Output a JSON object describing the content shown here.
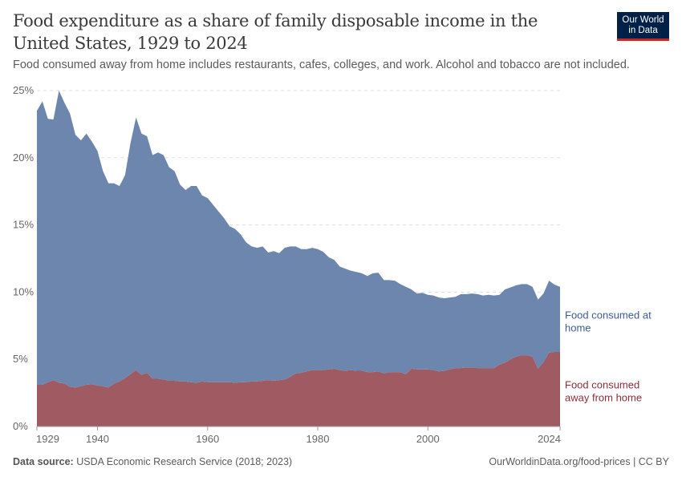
{
  "header": {
    "title": "Food expenditure as a share of family disposable income in the United States, 1929 to 2024",
    "subtitle": "Food consumed away from home includes restaurants, cafes, colleges, and work. Alcohol and tobacco are not included.",
    "logo_line1": "Our World",
    "logo_line2": "in Data"
  },
  "footer": {
    "source_label": "Data source:",
    "source": "USDA Economic Research Service (2018; 2023)",
    "link": "OurWorldinData.org/food-prices | CC BY"
  },
  "chart_data": {
    "type": "area",
    "stacked": true,
    "title": "Food expenditure as a share of family disposable income in the United States, 1929 to 2024",
    "x_start": 1929,
    "x_end": 2024,
    "xticks": [
      "1929",
      "1940",
      "1960",
      "1980",
      "2000",
      "2024"
    ],
    "yticks": [
      "0%",
      "5%",
      "10%",
      "15%",
      "20%",
      "25%"
    ],
    "ylim": [
      0,
      25
    ],
    "grid": "horizontal dashed",
    "legend": "right, inline labels",
    "series": [
      {
        "name": "Food consumed away from home",
        "label_line1": "Food consumed",
        "label_line2": "away from home",
        "color": "#a05a62",
        "label_color": "#8c2e3a",
        "values": [
          3.1,
          3.1,
          3.3,
          3.45,
          3.25,
          3.2,
          2.95,
          2.9,
          3.0,
          3.1,
          3.15,
          3.05,
          3.0,
          2.9,
          3.2,
          3.35,
          3.6,
          3.9,
          4.2,
          3.85,
          4.0,
          3.55,
          3.55,
          3.5,
          3.4,
          3.4,
          3.35,
          3.35,
          3.3,
          3.25,
          3.35,
          3.3,
          3.3,
          3.3,
          3.3,
          3.3,
          3.25,
          3.3,
          3.3,
          3.35,
          3.35,
          3.4,
          3.45,
          3.4,
          3.45,
          3.5,
          3.7,
          3.95,
          4.0,
          4.1,
          4.2,
          4.2,
          4.2,
          4.25,
          4.3,
          4.2,
          4.15,
          4.2,
          4.15,
          4.15,
          4.05,
          4.05,
          4.1,
          3.95,
          4.05,
          4.05,
          4.05,
          3.9,
          4.3,
          4.25,
          4.25,
          4.25,
          4.2,
          4.1,
          4.15,
          4.25,
          4.35,
          4.35,
          4.4,
          4.4,
          4.35,
          4.35,
          4.35,
          4.35,
          4.6,
          4.75,
          5.0,
          5.2,
          5.3,
          5.3,
          5.2,
          4.3,
          4.8,
          5.5,
          5.55,
          5.55
        ]
      },
      {
        "name": "Food consumed at home",
        "label_line1": "Food consumed at",
        "label_line2": "home",
        "color": "#6d86ad",
        "label_color": "#3b5c93",
        "values": [
          20.4,
          21.1,
          19.6,
          19.4,
          21.75,
          20.9,
          20.35,
          18.8,
          18.3,
          18.7,
          18.05,
          17.45,
          16.0,
          15.2,
          14.9,
          14.55,
          15.1,
          17.2,
          18.8,
          17.95,
          17.6,
          16.65,
          16.85,
          16.7,
          15.9,
          15.6,
          14.65,
          14.25,
          14.6,
          14.65,
          13.85,
          13.7,
          13.2,
          12.7,
          12.2,
          11.6,
          11.45,
          11.0,
          10.4,
          10.05,
          9.95,
          10.0,
          9.5,
          9.65,
          9.45,
          9.8,
          9.7,
          9.45,
          9.2,
          9.1,
          9.1,
          9.0,
          8.8,
          8.35,
          8.1,
          7.7,
          7.6,
          7.4,
          7.35,
          7.25,
          7.15,
          7.35,
          7.35,
          6.95,
          6.85,
          6.8,
          6.55,
          6.5,
          5.9,
          5.65,
          5.7,
          5.55,
          5.55,
          5.5,
          5.4,
          5.35,
          5.3,
          5.5,
          5.45,
          5.5,
          5.5,
          5.4,
          5.45,
          5.4,
          5.2,
          5.45,
          5.35,
          5.3,
          5.3,
          5.3,
          5.2,
          5.15,
          5.1,
          5.35,
          5.0,
          4.85
        ]
      }
    ]
  }
}
